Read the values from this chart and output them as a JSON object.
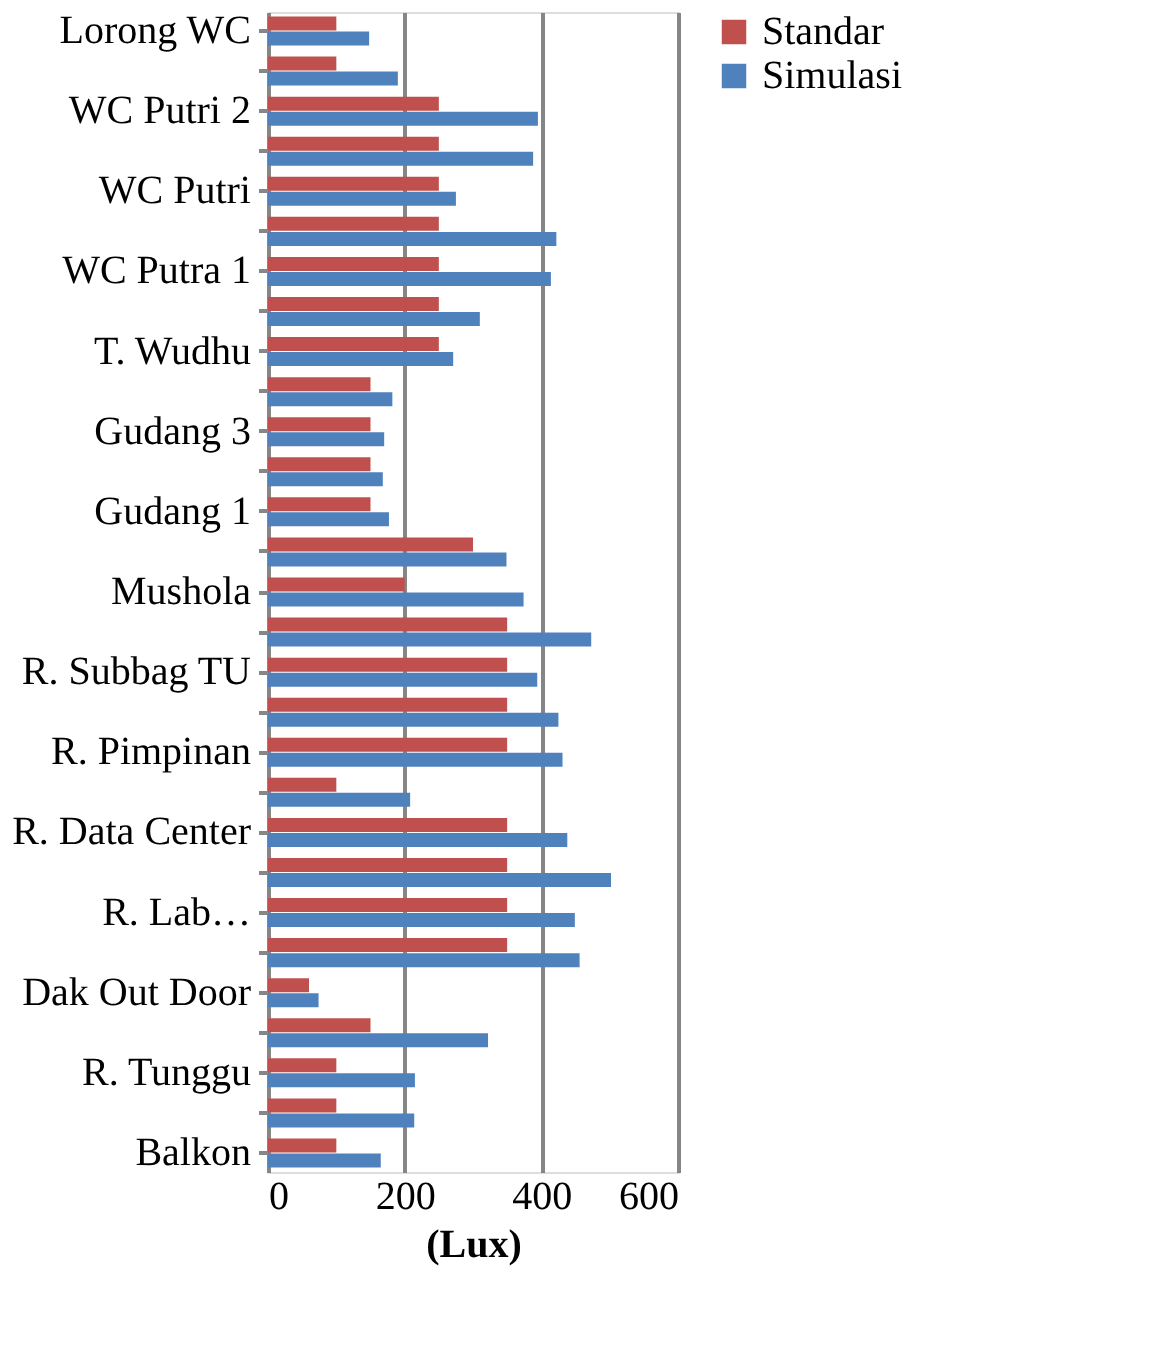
{
  "chart_data": {
    "type": "bar",
    "orientation": "horizontal",
    "xlabel": "(Lux)",
    "categories": [
      "Lorong WC",
      null,
      "WC Putri 2",
      null,
      "WC Putri",
      null,
      "WC Putra 1",
      null,
      "T. Wudhu",
      null,
      "Gudang 3",
      null,
      "Gudang 1",
      null,
      "Mushola",
      null,
      "R. Subbag TU",
      null,
      "R. Pimpinan",
      null,
      "R. Data Center",
      null,
      "R. Lab…",
      null,
      "Dak Out Door",
      null,
      "R. Tunggu",
      null,
      "Balkon"
    ],
    "series": [
      {
        "name": "Standar",
        "color": "#c0504d",
        "values": [
          100,
          100,
          250,
          250,
          250,
          250,
          250,
          250,
          250,
          150,
          150,
          150,
          150,
          300,
          200,
          350,
          350,
          350,
          350,
          100,
          350,
          350,
          350,
          350,
          60,
          150,
          100,
          100,
          100
        ]
      },
      {
        "name": "Simulasi",
        "color": "#4f81bd",
        "values": [
          148,
          190,
          395,
          388,
          275,
          422,
          414,
          310,
          271,
          182,
          170,
          168,
          177,
          349,
          374,
          473,
          394,
          425,
          431,
          208,
          438,
          502,
          449,
          456,
          74,
          322,
          215,
          214,
          165
        ]
      }
    ],
    "xlim": [
      0,
      600
    ],
    "xticks": [
      0,
      200,
      400,
      600
    ],
    "grid": "x",
    "legend": "right"
  }
}
